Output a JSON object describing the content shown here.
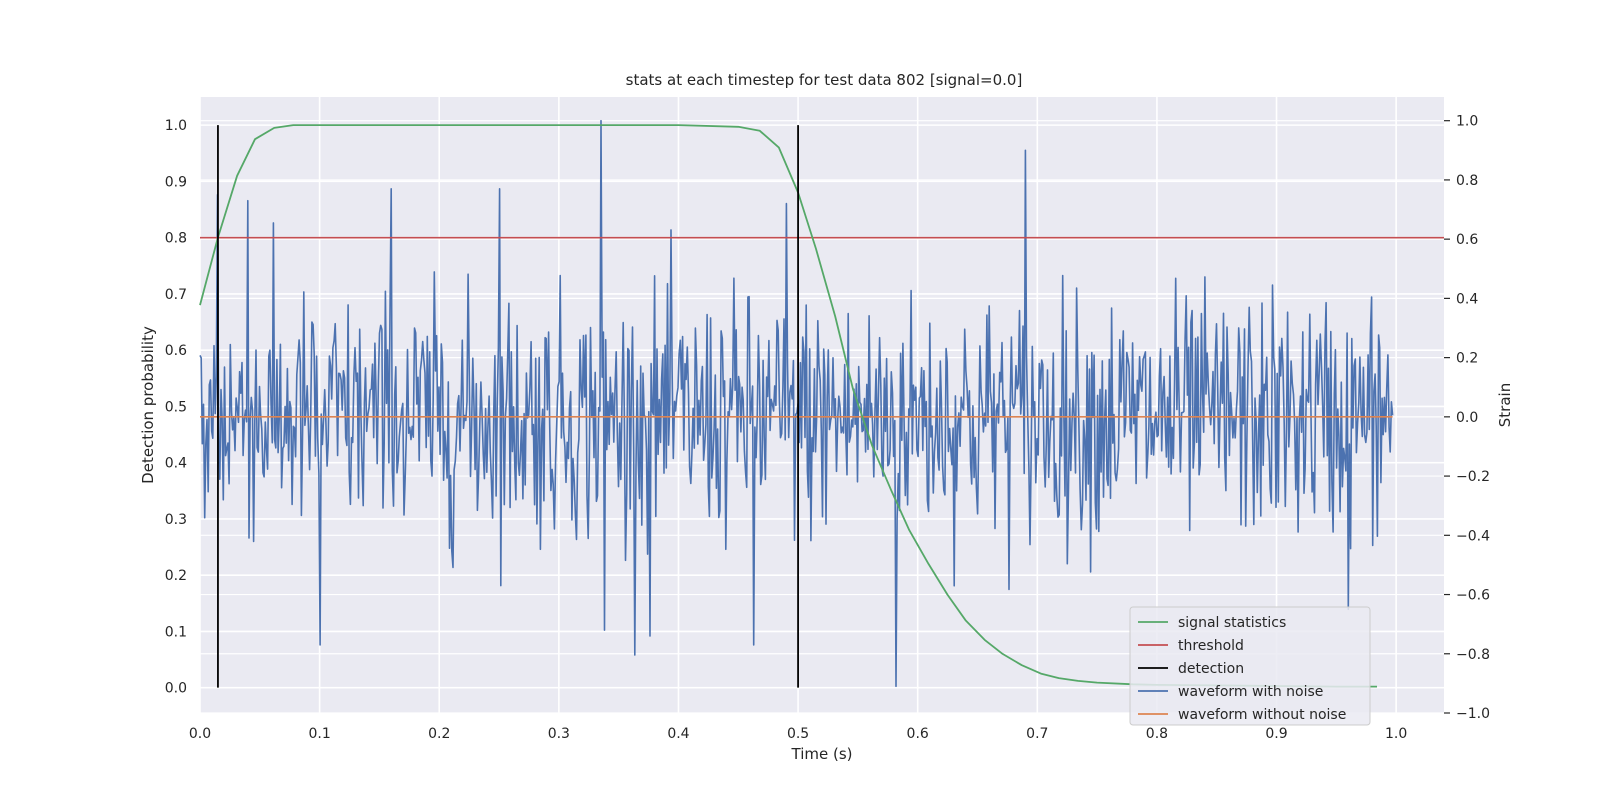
{
  "chart_data": {
    "type": "line",
    "title": "stats at each timestep for test data 802 [signal=0.0]",
    "xlabel": "Time (s)",
    "ylabel_left": "Detection probability",
    "ylabel_right": "Strain",
    "xlim": [
      0.0,
      1.04
    ],
    "ylim_left": [
      -0.045,
      1.05
    ],
    "ylim_right": [
      -1.0,
      1.08
    ],
    "x_ticks": [
      "0.0",
      "0.1",
      "0.2",
      "0.3",
      "0.4",
      "0.5",
      "0.6",
      "0.7",
      "0.8",
      "0.9",
      "1.0"
    ],
    "x_tick_values": [
      0.0,
      0.1,
      0.2,
      0.3,
      0.4,
      0.5,
      0.6,
      0.7,
      0.8,
      0.9,
      1.0
    ],
    "y_ticks_left": [
      "0.0",
      "0.1",
      "0.2",
      "0.3",
      "0.4",
      "0.5",
      "0.6",
      "0.7",
      "0.8",
      "0.9",
      "1.0"
    ],
    "y_tick_values_left": [
      0.0,
      0.1,
      0.2,
      0.3,
      0.4,
      0.5,
      0.6,
      0.7,
      0.8,
      0.9,
      1.0
    ],
    "y_ticks_right": [
      "−1.0",
      "−0.8",
      "−0.6",
      "−0.4",
      "−0.2",
      "0.0",
      "0.2",
      "0.4",
      "0.6",
      "0.8",
      "1.0"
    ],
    "y_tick_values_right": [
      -1.0,
      -0.8,
      -0.6,
      -0.4,
      -0.2,
      0.0,
      0.2,
      0.4,
      0.6,
      0.8,
      1.0
    ],
    "grid": true,
    "legend_position": "bottom-right",
    "series": [
      {
        "name": "signal statistics",
        "axis": "left",
        "color": "#55a868",
        "x": [
          0.0,
          0.015,
          0.031,
          0.046,
          0.062,
          0.078,
          0.1,
          0.2,
          0.3,
          0.4,
          0.45,
          0.468,
          0.484,
          0.5,
          0.515,
          0.531,
          0.546,
          0.562,
          0.578,
          0.593,
          0.609,
          0.625,
          0.64,
          0.656,
          0.671,
          0.687,
          0.703,
          0.718,
          0.734,
          0.75,
          0.78,
          0.8,
          0.85,
          0.9,
          0.95,
          0.984
        ],
        "y": [
          0.68,
          0.8,
          0.91,
          0.975,
          0.995,
          1.0,
          1.0,
          1.0,
          1.0,
          1.0,
          0.997,
          0.99,
          0.96,
          0.88,
          0.78,
          0.66,
          0.53,
          0.43,
          0.35,
          0.28,
          0.22,
          0.165,
          0.12,
          0.085,
          0.06,
          0.04,
          0.025,
          0.017,
          0.012,
          0.009,
          0.006,
          0.005,
          0.004,
          0.003,
          0.002,
          0.002
        ]
      },
      {
        "name": "threshold",
        "axis": "left",
        "color": "#c44e52",
        "x": [
          0.0,
          1.04
        ],
        "y": [
          0.8,
          0.8
        ]
      },
      {
        "name": "detection",
        "axis": "left",
        "color": "#000000",
        "x": [
          0.015,
          0.5
        ],
        "y_min": 0.0,
        "y_max": 1.0
      },
      {
        "name": "waveform with noise",
        "axis": "right",
        "color": "#4c72b0",
        "x_start": 0.0,
        "x_end": 0.997,
        "samples": 1024,
        "peak_points": [
          [
            0.335,
            1.0
          ],
          [
            0.582,
            -0.91
          ],
          [
            0.69,
            0.9
          ],
          [
            0.015,
            0.75
          ],
          [
            0.16,
            0.77
          ],
          [
            0.25,
            0.77
          ],
          [
            0.1,
            -0.77
          ],
          [
            0.338,
            -0.72
          ],
          [
            0.376,
            -0.74
          ],
          [
            0.463,
            -0.77
          ],
          [
            0.96,
            -0.65
          ],
          [
            0.49,
            0.72
          ],
          [
            0.04,
            0.73
          ]
        ],
        "amplitude_sd": 0.2
      },
      {
        "name": "waveform without noise",
        "axis": "right",
        "color": "#dd8452",
        "x": [
          0.0,
          0.997
        ],
        "y": [
          0.0,
          0.0
        ]
      }
    ]
  }
}
